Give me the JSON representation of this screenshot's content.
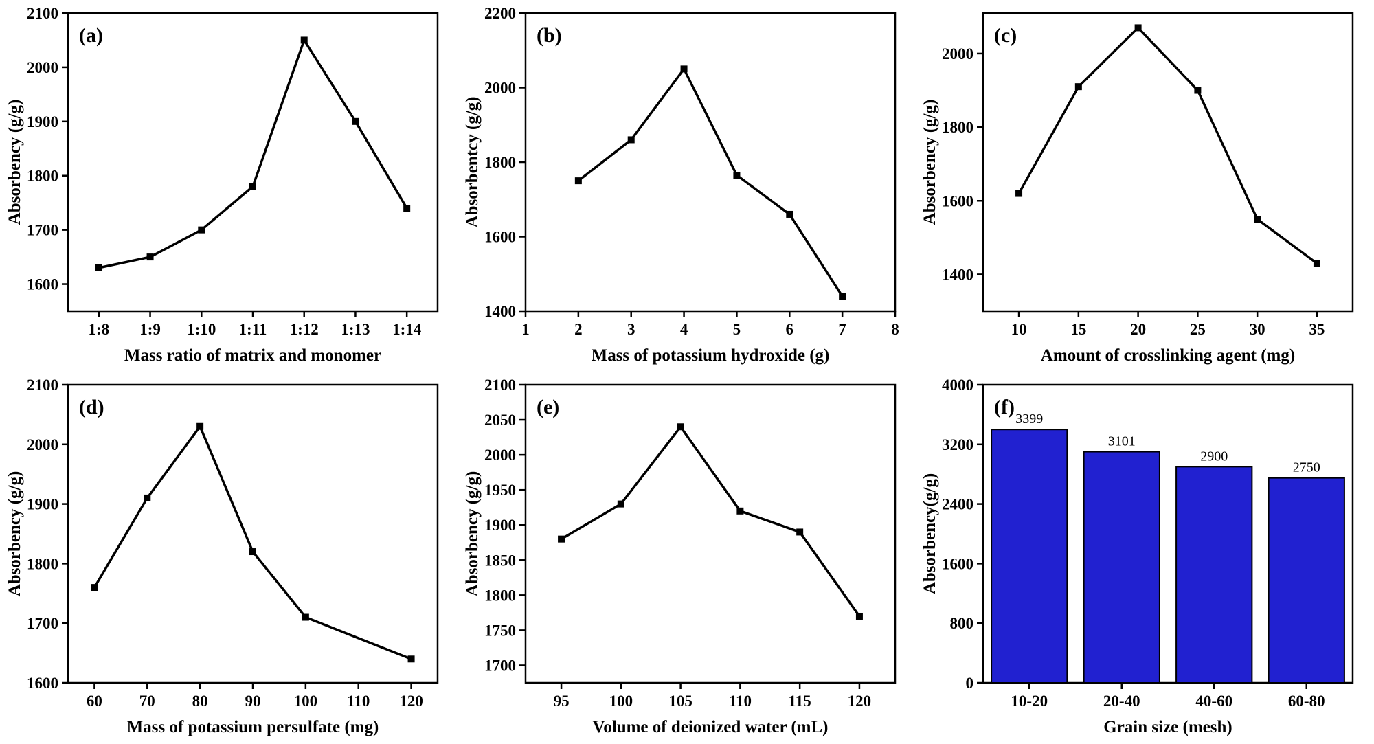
{
  "figure": {
    "background": "#ffffff",
    "text_color": "#000000",
    "line_color": "#000000",
    "marker_shape": "square"
  },
  "chart_data": [
    {
      "id": "a",
      "panel_label": "(a)",
      "type": "line",
      "title": "",
      "xlabel": "Mass ratio of matrix and monomer",
      "ylabel": "Absorbency (g/g)",
      "x": [
        8,
        9,
        10,
        11,
        12,
        13,
        14
      ],
      "values": [
        1630,
        1650,
        1700,
        1780,
        2050,
        1900,
        1740
      ],
      "xlim": [
        7.4,
        14.6
      ],
      "xticks": [
        8,
        9,
        10,
        11,
        12,
        13,
        14
      ],
      "xtick_labels": [
        "1:8",
        "1:9",
        "1:10",
        "1:11",
        "1:12",
        "1:13",
        "1:14"
      ],
      "ylim": [
        1550,
        2100
      ],
      "yticks": [
        1600,
        1700,
        1800,
        1900,
        2000,
        2100
      ],
      "grid": false,
      "legend": "none"
    },
    {
      "id": "b",
      "panel_label": "(b)",
      "type": "line",
      "title": "",
      "xlabel": "Mass of potassium hydroxide (g)",
      "ylabel": "Absorbentcy (g/g)",
      "x": [
        2,
        3,
        4,
        5,
        6,
        7
      ],
      "values": [
        1750,
        1860,
        2050,
        1765,
        1660,
        1440
      ],
      "xlim": [
        1,
        8
      ],
      "xticks": [
        1,
        2,
        3,
        4,
        5,
        6,
        7,
        8
      ],
      "ylim": [
        1400,
        2200
      ],
      "yticks": [
        1400,
        1600,
        1800,
        2000,
        2200
      ],
      "grid": false,
      "legend": "none"
    },
    {
      "id": "c",
      "panel_label": "(c)",
      "type": "line",
      "title": "",
      "xlabel": "Amount of crosslinking agent (mg)",
      "ylabel": "Absorbency (g/g)",
      "x": [
        10,
        15,
        20,
        25,
        30,
        35
      ],
      "values": [
        1620,
        1910,
        2070,
        1900,
        1550,
        1430
      ],
      "xlim": [
        7,
        38
      ],
      "xticks": [
        10,
        15,
        20,
        25,
        30,
        35
      ],
      "ylim": [
        1300,
        2110
      ],
      "yticks": [
        1400,
        1600,
        1800,
        2000
      ],
      "grid": false,
      "legend": "none"
    },
    {
      "id": "d",
      "panel_label": "(d)",
      "type": "line",
      "title": "",
      "xlabel": "Mass of potassium persulfate (mg)",
      "ylabel": "Absorbency (g/g)",
      "x": [
        60,
        70,
        80,
        90,
        100,
        120
      ],
      "values": [
        1760,
        1910,
        2030,
        1820,
        1710,
        1640
      ],
      "xlim": [
        55,
        125
      ],
      "xticks": [
        60,
        70,
        80,
        90,
        100,
        110,
        120
      ],
      "ylim": [
        1600,
        2100
      ],
      "yticks": [
        1600,
        1700,
        1800,
        1900,
        2000,
        2100
      ],
      "grid": false,
      "legend": "none"
    },
    {
      "id": "e",
      "panel_label": "(e)",
      "type": "line",
      "title": "",
      "xlabel": "Volume of deionized water (mL)",
      "ylabel": "Absorbency (g/g)",
      "x": [
        95,
        100,
        105,
        110,
        115,
        120
      ],
      "values": [
        1880,
        1930,
        2040,
        1920,
        1890,
        1770
      ],
      "xlim": [
        92,
        123
      ],
      "xticks": [
        95,
        100,
        105,
        110,
        115,
        120
      ],
      "ylim": [
        1675,
        2100
      ],
      "yticks": [
        1700,
        1750,
        1800,
        1850,
        1900,
        1950,
        2000,
        2050,
        2100
      ],
      "grid": false,
      "legend": "none"
    },
    {
      "id": "f",
      "panel_label": "(f)",
      "type": "bar",
      "title": "",
      "xlabel": "Grain size (mesh)",
      "ylabel": "Absorbency(g/g)",
      "categories": [
        "10-20",
        "20-40",
        "40-60",
        "60-80"
      ],
      "values": [
        3399,
        3101,
        2900,
        2750
      ],
      "value_labels": [
        "3399",
        "3101",
        "2900",
        "2750"
      ],
      "bar_color": "#2121D0",
      "bar_edge_color": "#000000",
      "ylim": [
        0,
        4000
      ],
      "yticks": [
        0,
        800,
        1600,
        2400,
        3200,
        4000
      ],
      "grid": false,
      "legend": "none"
    }
  ]
}
